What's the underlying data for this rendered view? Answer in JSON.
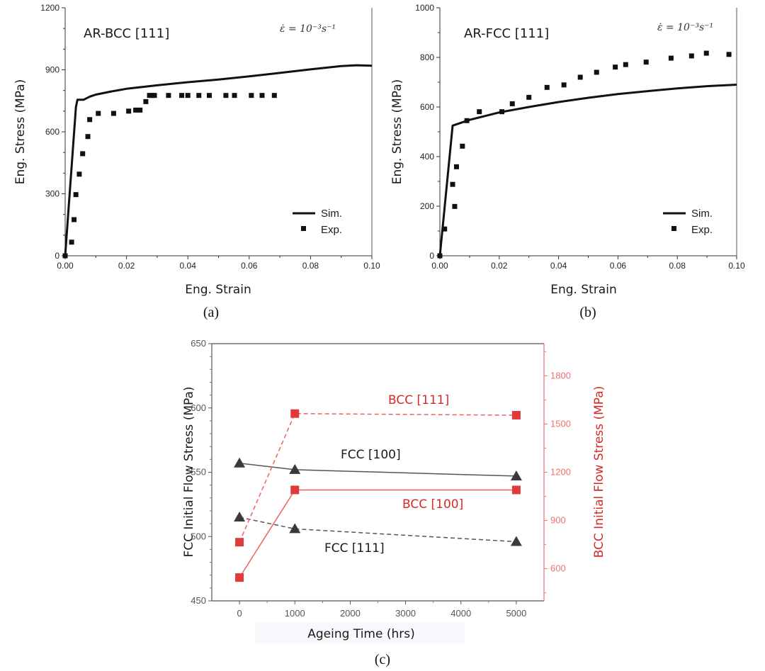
{
  "chart_data": [
    {
      "id": "a",
      "type": "scatter",
      "caption": "(a)",
      "title": "AR-BCC [111]",
      "annotation": "ε̇ = 10⁻³s⁻¹",
      "xlabel": "Eng. Strain",
      "ylabel": "Eng. Stress (MPa)",
      "xlim": [
        0,
        0.1
      ],
      "ylim": [
        0,
        1200
      ],
      "xticks": [
        "0.00",
        "0.02",
        "0.04",
        "0.06",
        "0.08",
        "0.10"
      ],
      "xtick_values": [
        0,
        0.02,
        0.04,
        0.06,
        0.08,
        0.1
      ],
      "yticks": [
        "0",
        "300",
        "600",
        "900",
        "1200"
      ],
      "ytick_values": [
        0,
        300,
        600,
        900,
        1200
      ],
      "legend": {
        "position": "bottom-right",
        "entries": [
          "Sim.",
          "Exp."
        ]
      },
      "series": [
        {
          "name": "Sim.",
          "kind": "line",
          "x": [
            0,
            0.0035,
            0.004,
            0.006,
            0.008,
            0.01,
            0.015,
            0.02,
            0.03,
            0.04,
            0.05,
            0.06,
            0.07,
            0.08,
            0.09,
            0.095,
            0.1
          ],
          "y": [
            0,
            720,
            755,
            755,
            770,
            780,
            795,
            808,
            825,
            840,
            853,
            868,
            885,
            902,
            918,
            922,
            920
          ]
        },
        {
          "name": "Exp.",
          "kind": "marker",
          "x": [
            0,
            0.0021,
            0.0029,
            0.0035,
            0.0046,
            0.0057,
            0.0074,
            0.008,
            0.0108,
            0.0158,
            0.0207,
            0.023,
            0.0244,
            0.0263,
            0.0275,
            0.0283,
            0.0291,
            0.0337,
            0.038,
            0.04,
            0.0436,
            0.047,
            0.0524,
            0.0552,
            0.0607,
            0.0642,
            0.0682
          ],
          "y": [
            0,
            66,
            175,
            296,
            395,
            494,
            577,
            659,
            689,
            689,
            700,
            705,
            705,
            746,
            776,
            776,
            776,
            776,
            776,
            776,
            776,
            776,
            776,
            776,
            776,
            776,
            776
          ]
        }
      ]
    },
    {
      "id": "b",
      "type": "scatter",
      "caption": "(b)",
      "title": "AR-FCC [111]",
      "annotation": "ε̇ = 10⁻³s⁻¹",
      "xlabel": "Eng. Strain",
      "ylabel": "Eng. Stress (MPa)",
      "xlim": [
        0,
        0.1
      ],
      "ylim": [
        0,
        1000
      ],
      "xticks": [
        "0.00",
        "0.02",
        "0.04",
        "0.06",
        "0.08",
        "0.10"
      ],
      "xtick_values": [
        0,
        0.02,
        0.04,
        0.06,
        0.08,
        0.1
      ],
      "yticks": [
        "0",
        "200",
        "400",
        "600",
        "800",
        "1000"
      ],
      "ytick_values": [
        0,
        200,
        400,
        600,
        800,
        1000
      ],
      "legend": {
        "position": "bottom-right",
        "entries": [
          "Sim.",
          "Exp."
        ]
      },
      "series": [
        {
          "name": "Sim.",
          "kind": "line",
          "x": [
            0,
            0.0043,
            0.01,
            0.02,
            0.03,
            0.04,
            0.05,
            0.06,
            0.07,
            0.08,
            0.09,
            0.1
          ],
          "y": [
            0,
            525,
            548,
            578,
            600,
            620,
            637,
            652,
            664,
            675,
            684,
            690
          ]
        },
        {
          "name": "Exp.",
          "kind": "marker",
          "x": [
            0,
            0.0016,
            0.0043,
            0.005,
            0.0056,
            0.0076,
            0.0091,
            0.0133,
            0.0209,
            0.0244,
            0.03,
            0.0361,
            0.0418,
            0.0473,
            0.0528,
            0.0591,
            0.0626,
            0.0695,
            0.0779,
            0.0848,
            0.0898,
            0.0974
          ],
          "y": [
            0,
            108,
            288,
            199,
            359,
            442,
            545,
            581,
            581,
            613,
            639,
            679,
            689,
            720,
            740,
            761,
            771,
            781,
            797,
            806,
            817,
            812
          ]
        }
      ]
    },
    {
      "id": "c",
      "type": "line",
      "caption": "(c)",
      "xlabel": "Ageing Time (hrs)",
      "ylabel": "FCC Initial Flow Stress (MPa)",
      "ylabel_right": "BCC Initial Flow Stress (MPa)",
      "xlim": [
        -500,
        5500
      ],
      "ylim": [
        450,
        650
      ],
      "ylim_right": [
        400,
        2000
      ],
      "xticks": [
        "0",
        "1000",
        "2000",
        "3000",
        "4000",
        "5000"
      ],
      "xtick_values": [
        0,
        1000,
        2000,
        3000,
        4000,
        5000
      ],
      "yticks": [
        "450",
        "500",
        "550",
        "600",
        "650"
      ],
      "ytick_values": [
        450,
        500,
        550,
        600,
        650
      ],
      "yticks_right": [
        "600",
        "900",
        "1200",
        "1500",
        "1800"
      ],
      "ytick_values_right": [
        600,
        900,
        1200,
        1500,
        1800
      ],
      "colors": {
        "fcc": "#3a3a3a",
        "bcc": "#e03a3a",
        "right_axis": "#f07070"
      },
      "series": [
        {
          "name": "FCC [100]",
          "axis": "left",
          "marker": "triangle",
          "dashed": false,
          "x": [
            0,
            1000,
            5000
          ],
          "y": [
            557,
            552,
            547
          ]
        },
        {
          "name": "FCC [111]",
          "axis": "left",
          "marker": "triangle",
          "dashed": true,
          "x": [
            0,
            1000,
            5000
          ],
          "y": [
            515,
            506,
            496
          ]
        },
        {
          "name": "BCC [111]",
          "axis": "right",
          "marker": "square",
          "dashed": true,
          "x": [
            0,
            1000,
            5000
          ],
          "y": [
            765,
            1565,
            1555
          ]
        },
        {
          "name": "BCC [100]",
          "axis": "right",
          "marker": "square",
          "dashed": false,
          "x": [
            0,
            1000,
            5000
          ],
          "y": [
            545,
            1090,
            1090
          ]
        }
      ]
    }
  ]
}
